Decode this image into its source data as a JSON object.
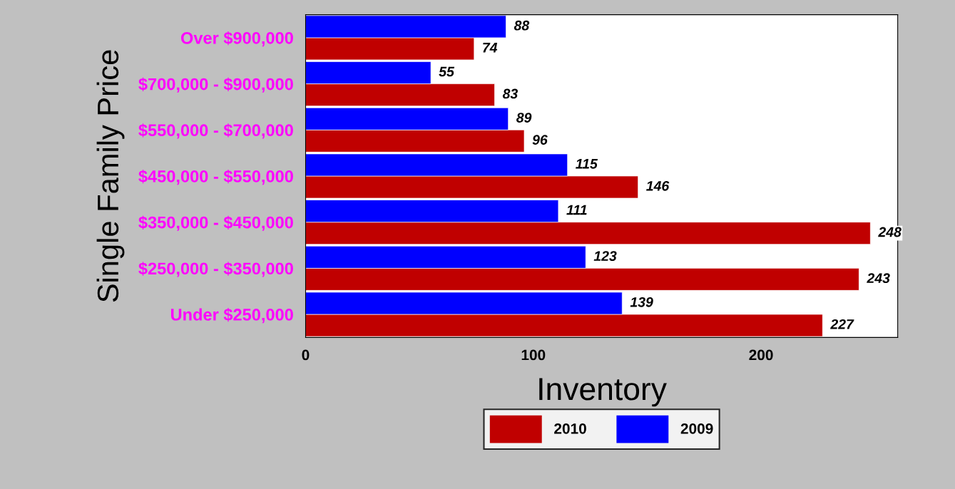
{
  "chart_data": {
    "type": "bar",
    "orientation": "horizontal",
    "xlabel": "Inventory",
    "ylabel": "Single Family Price",
    "categories": [
      "Over $900,000",
      "$700,000 - $900,000",
      "$550,000 - $700,000",
      "$450,000 - $550,000",
      "$350,000 - $450,000",
      "$250,000 - $350,000",
      "Under $250,000"
    ],
    "series": [
      {
        "name": "2010",
        "color": "#c00000",
        "values": [
          74,
          83,
          96,
          146,
          248,
          243,
          227
        ]
      },
      {
        "name": "2009",
        "color": "#0000ff",
        "values": [
          88,
          55,
          89,
          115,
          111,
          123,
          139
        ]
      }
    ],
    "xlim": [
      0,
      260
    ],
    "xticks": [
      0,
      100,
      200
    ],
    "data_labels": true,
    "legend": "bottom",
    "grid": false
  }
}
